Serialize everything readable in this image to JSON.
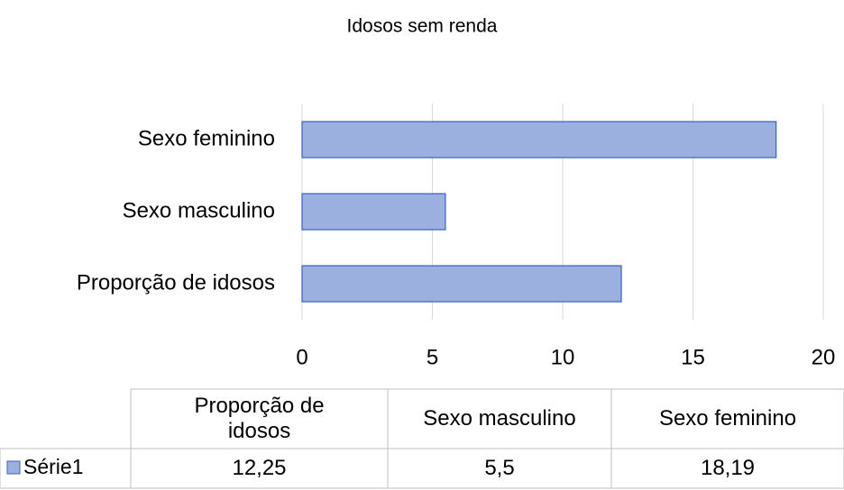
{
  "chart_data": {
    "type": "bar",
    "orientation": "horizontal",
    "title": "Idosos sem renda",
    "categories": [
      "Proporção de idosos",
      "Sexo masculino",
      "Sexo feminino"
    ],
    "series": [
      {
        "name": "Série1",
        "color": "#9cb0e0",
        "values": [
          12.25,
          5.5,
          18.19
        ],
        "value_labels": [
          "12,25",
          "5,5",
          "18,19"
        ]
      }
    ],
    "xlim": [
      0,
      20
    ],
    "xticks": [
      0,
      5,
      10,
      15,
      20
    ],
    "grid": true
  }
}
